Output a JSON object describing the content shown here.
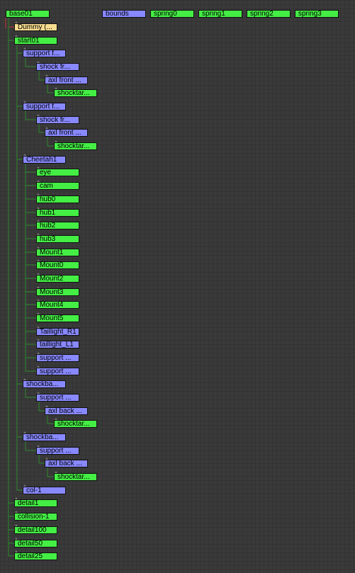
{
  "colors": {
    "background": "#3a3a3a",
    "grid": "#333333",
    "geometry_node": "#44ee44",
    "bone_node": "#8888ff",
    "helper_node": "#f7dc8f",
    "link": "#2e8b2e",
    "link_alt": "#cc3333"
  },
  "top_nodes": [
    {
      "label": "base01",
      "kind": "green"
    },
    {
      "label": "bounds",
      "kind": "blue"
    },
    {
      "label": "spring0",
      "kind": "green"
    },
    {
      "label": "spring1",
      "kind": "green"
    },
    {
      "label": "spring2",
      "kind": "green"
    },
    {
      "label": "spring3",
      "kind": "green"
    }
  ],
  "tree": [
    {
      "label": "Dummy (...",
      "kind": "yellow",
      "depth": 1
    },
    {
      "label": "start01",
      "kind": "green",
      "depth": 1
    },
    {
      "label": "support f...",
      "kind": "blue",
      "depth": 2
    },
    {
      "label": "shock fr...",
      "kind": "blue",
      "depth": 3
    },
    {
      "label": "axl front ...",
      "kind": "blue",
      "depth": 4
    },
    {
      "label": "shocktar...",
      "kind": "green",
      "depth": 5
    },
    {
      "label": "support f...",
      "kind": "blue",
      "depth": 2
    },
    {
      "label": "shock fr...",
      "kind": "blue",
      "depth": 3
    },
    {
      "label": "axl front ...",
      "kind": "blue",
      "depth": 4
    },
    {
      "label": "shocktar...",
      "kind": "green",
      "depth": 5
    },
    {
      "label": "Cheetah1",
      "kind": "blue",
      "depth": 2
    },
    {
      "label": "eye",
      "kind": "green",
      "depth": 3
    },
    {
      "label": "cam",
      "kind": "green",
      "depth": 3
    },
    {
      "label": "hub0",
      "kind": "green",
      "depth": 3
    },
    {
      "label": "hub1",
      "kind": "green",
      "depth": 3
    },
    {
      "label": "hub2",
      "kind": "green",
      "depth": 3
    },
    {
      "label": "hub3",
      "kind": "green",
      "depth": 3
    },
    {
      "label": "Mount1",
      "kind": "green",
      "depth": 3
    },
    {
      "label": "Mount0",
      "kind": "green",
      "depth": 3
    },
    {
      "label": "Mount2",
      "kind": "green",
      "depth": 3
    },
    {
      "label": "Mount3",
      "kind": "green",
      "depth": 3
    },
    {
      "label": "Mount4",
      "kind": "green",
      "depth": 3
    },
    {
      "label": "Mount5",
      "kind": "green",
      "depth": 3
    },
    {
      "label": "Taillight_R1",
      "kind": "blue",
      "depth": 3
    },
    {
      "label": "taillight_L1",
      "kind": "blue",
      "depth": 3
    },
    {
      "label": "support ...",
      "kind": "blue",
      "depth": 3
    },
    {
      "label": "support ...",
      "kind": "blue",
      "depth": 3
    },
    {
      "label": "shockba...",
      "kind": "blue",
      "depth": 2
    },
    {
      "label": "support ...",
      "kind": "blue",
      "depth": 3
    },
    {
      "label": "axl back ...",
      "kind": "blue",
      "depth": 4
    },
    {
      "label": "shocktar...",
      "kind": "green",
      "depth": 5
    },
    {
      "label": "shockba...",
      "kind": "blue",
      "depth": 2
    },
    {
      "label": "support ...",
      "kind": "blue",
      "depth": 3
    },
    {
      "label": "axl back ...",
      "kind": "blue",
      "depth": 4
    },
    {
      "label": "shocktar...",
      "kind": "green",
      "depth": 5
    },
    {
      "label": "col-1",
      "kind": "blue",
      "depth": 2
    },
    {
      "label": "detail1",
      "kind": "green",
      "depth": 1
    },
    {
      "label": "collision-1",
      "kind": "green",
      "depth": 1
    },
    {
      "label": "detail100",
      "kind": "green",
      "depth": 1
    },
    {
      "label": "detail50",
      "kind": "green",
      "depth": 1
    },
    {
      "label": "detail25",
      "kind": "green",
      "depth": 1
    }
  ]
}
